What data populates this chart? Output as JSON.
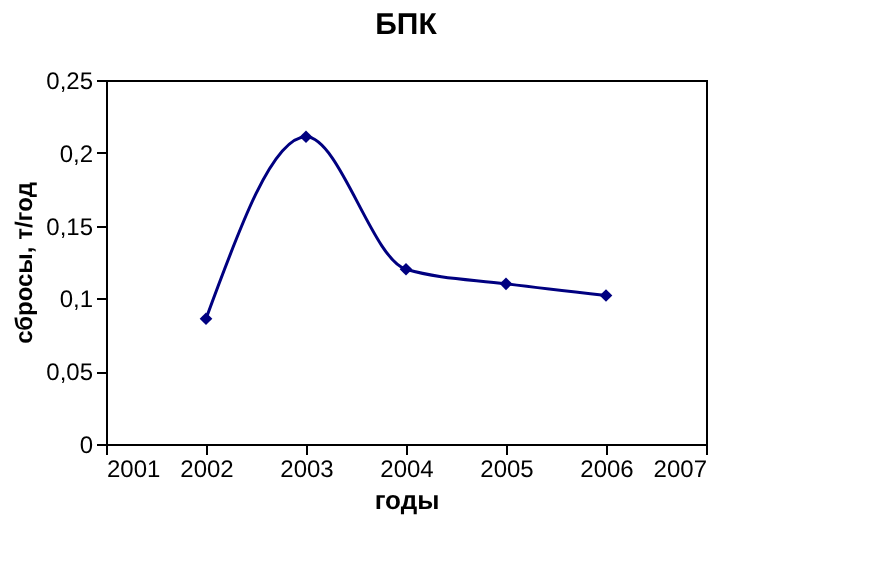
{
  "chart_data": {
    "type": "line",
    "title": "БПК",
    "xlabel": "годы",
    "ylabel": "сбросы, т/год",
    "x": [
      2002,
      2003,
      2004,
      2005,
      2006
    ],
    "series": [
      {
        "color": "#000080",
        "values": [
          0.086,
          0.211,
          0.12,
          0.11,
          0.102
        ]
      }
    ],
    "xlim": [
      2001,
      2007
    ],
    "xticks": [
      2001,
      2002,
      2003,
      2004,
      2005,
      2006,
      2007
    ],
    "ylim": [
      0,
      0.25
    ],
    "yticks": [
      {
        "value": 0,
        "label": "0"
      },
      {
        "value": 0.05,
        "label": "0,05"
      },
      {
        "value": 0.1,
        "label": "0,1"
      },
      {
        "value": 0.15,
        "label": "0,15"
      },
      {
        "value": 0.2,
        "label": "0,2"
      },
      {
        "value": 0.25,
        "label": "0,25"
      }
    ],
    "marker": "diamond",
    "line_style": "solid",
    "grid": false
  }
}
